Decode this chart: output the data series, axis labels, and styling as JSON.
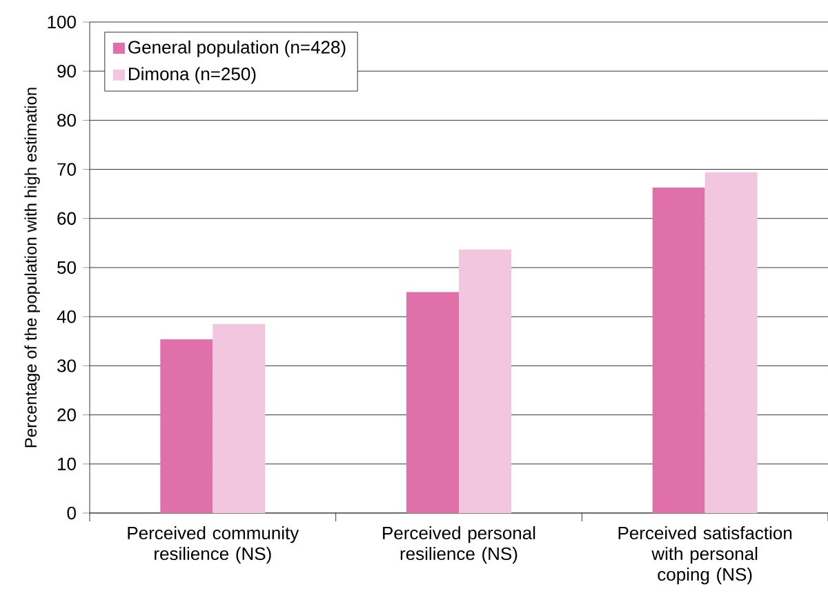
{
  "chart_data": {
    "type": "bar",
    "ylabel": "Percentage of the population with high estimation",
    "categories": [
      "Perceived community resilience (NS)",
      "Perceived personal resilience (NS)",
      "Perceived satisfaction with personal coping (NS)"
    ],
    "series": [
      {
        "name": "General population (n=428)",
        "color": "#e070aa",
        "values": [
          35.4,
          45.0,
          66.3
        ]
      },
      {
        "name": "Dimona (n=250)",
        "color": "#f1c6de",
        "values": [
          38.5,
          53.7,
          69.4
        ]
      }
    ],
    "ylim": [
      0,
      100
    ],
    "yticks": [
      0,
      10,
      20,
      30,
      40,
      50,
      60,
      70,
      80,
      90,
      100
    ],
    "grid": "y",
    "legend": "top left"
  }
}
